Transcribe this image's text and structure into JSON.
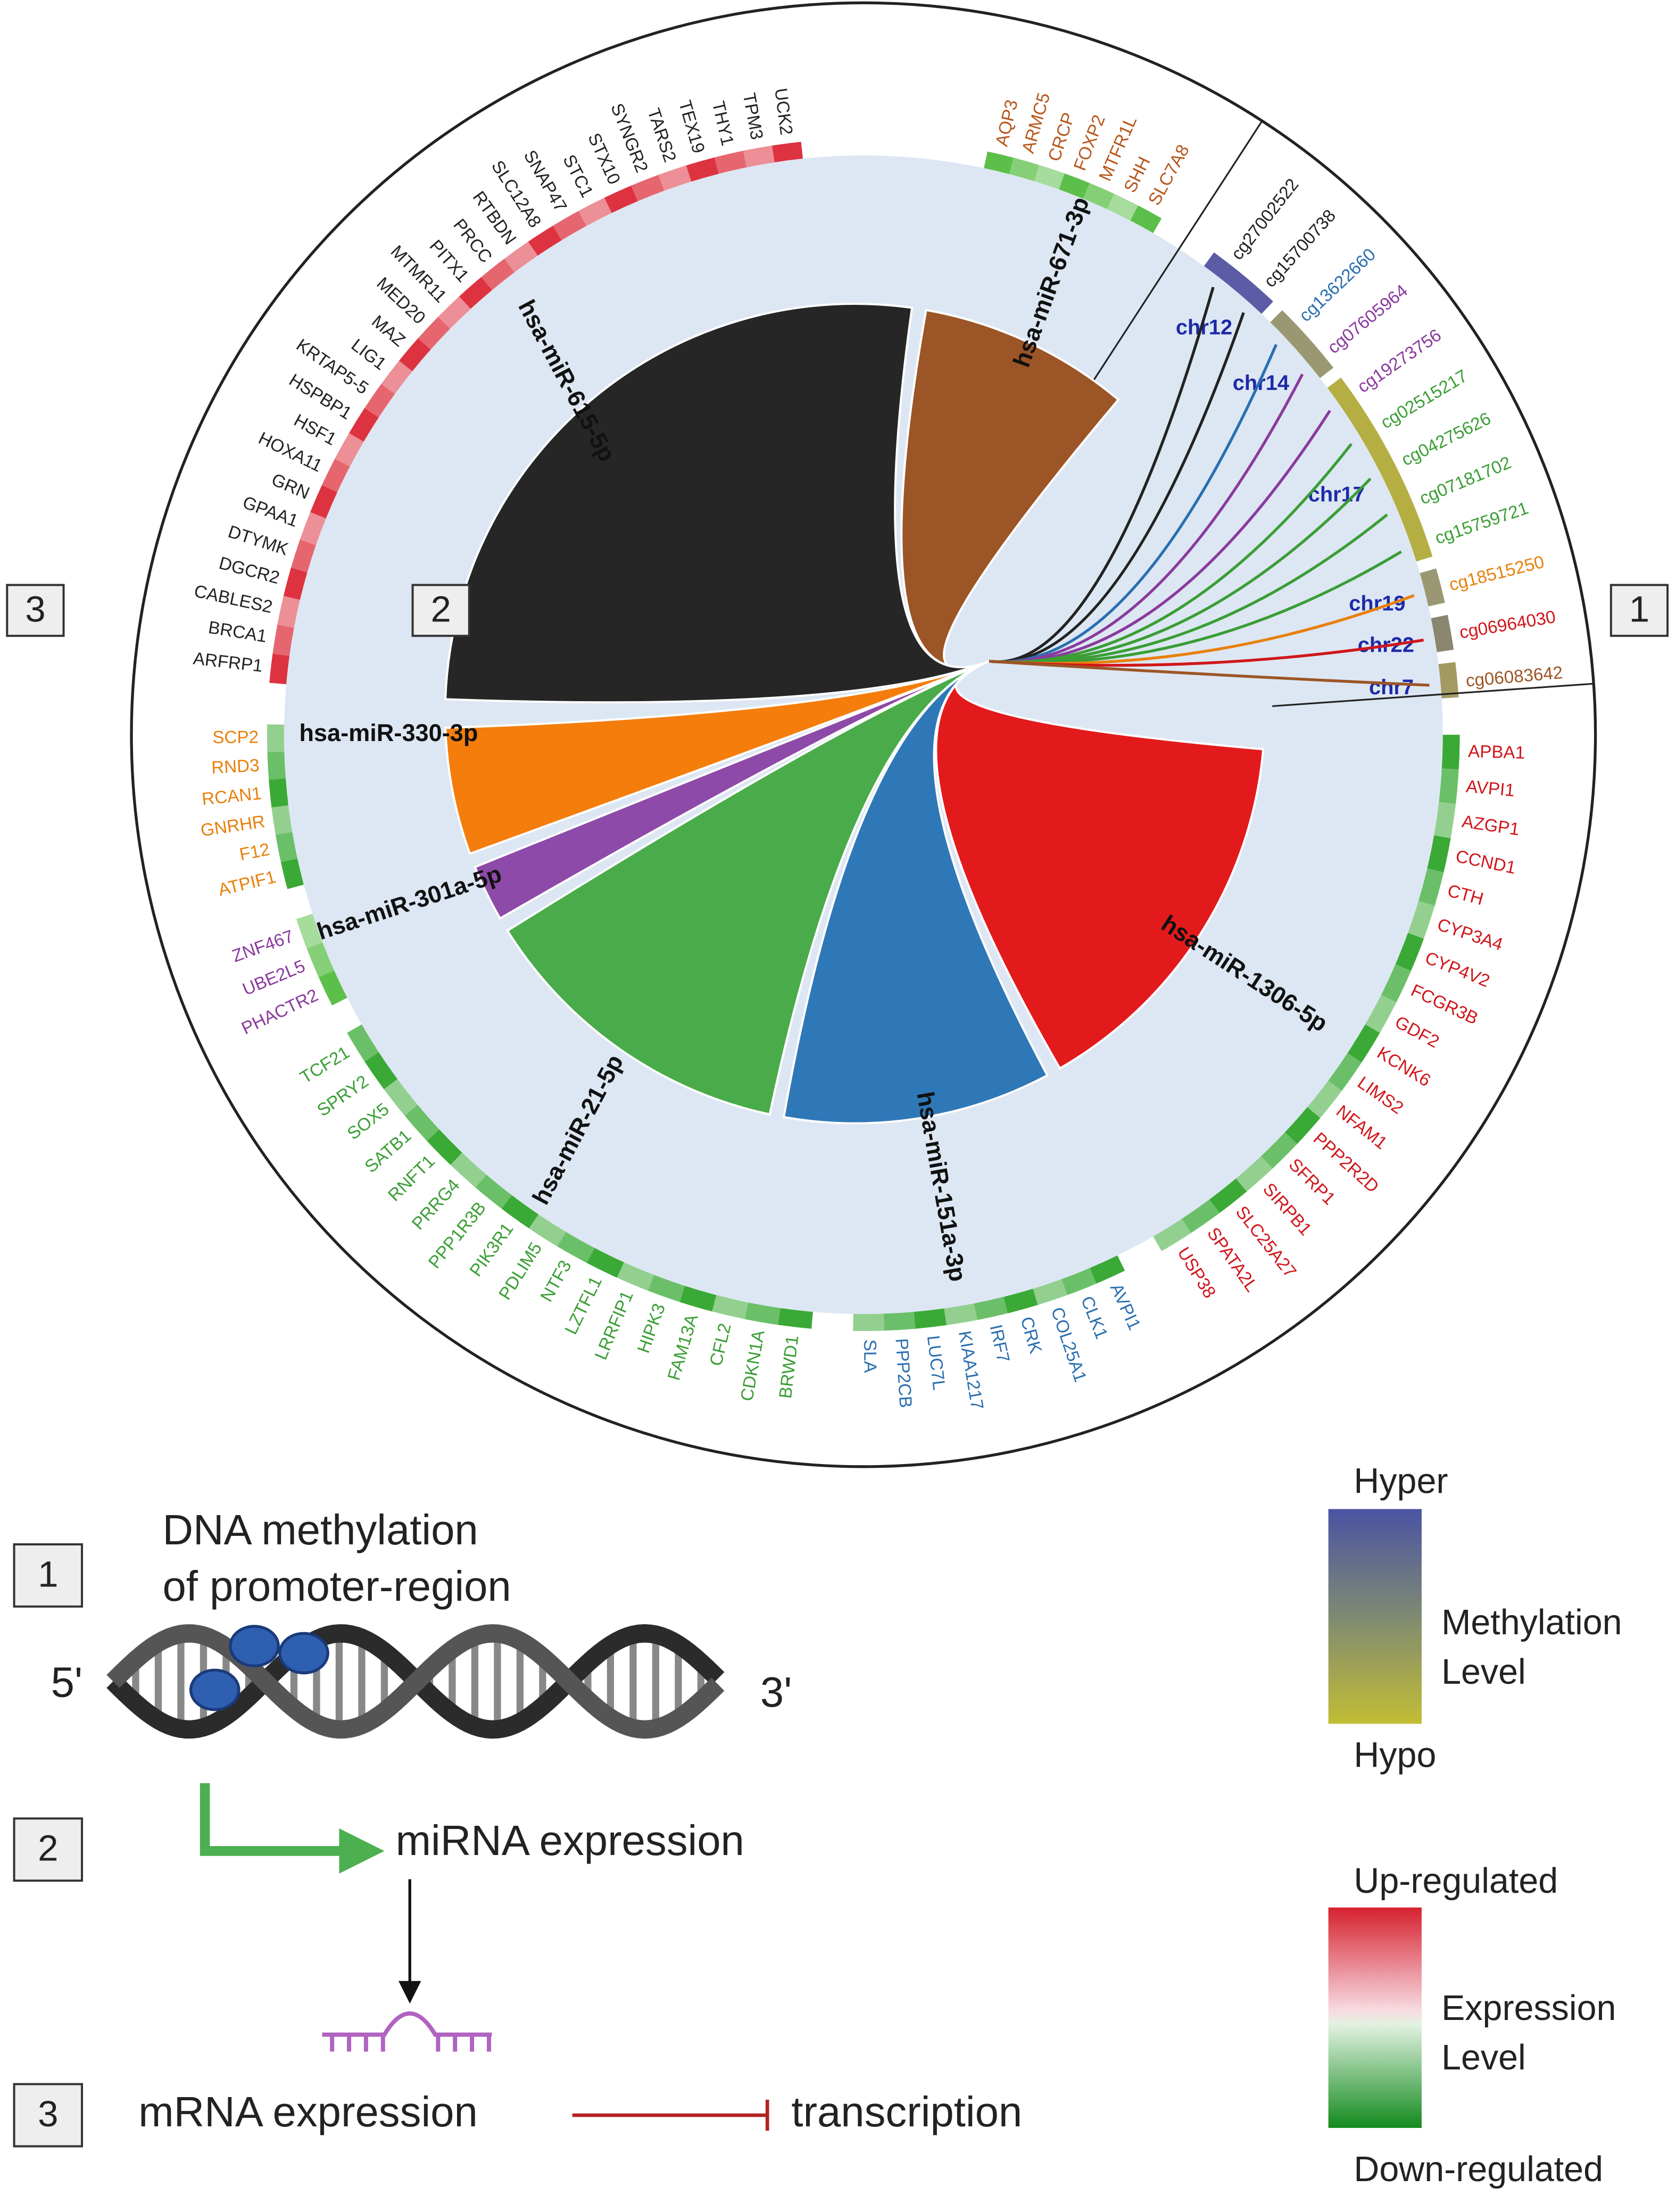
{
  "circos": {
    "sectors": [
      {
        "mirna": "hsa-miR-671-3p",
        "color": "#9c5526",
        "label_color": "#b8561a",
        "ring_color": "#5cbf4a",
        "genes": [
          "AQP3",
          "ARMC5",
          "CRCP",
          "FOXP2",
          "MTFR1L",
          "SHH",
          "SLC7A8"
        ]
      },
      {
        "mirna": "hsa-miR-1306-5p",
        "color": "#e31a1c",
        "label_color": "#d0161b",
        "ring_color": "#3aa935",
        "genes": [
          "APBA1",
          "AVPI1",
          "AZGP1",
          "CCND1",
          "CTH",
          "CYP3A4",
          "CYP4V2",
          "FCGR3B",
          "GDF2",
          "KCNK6",
          "LIMS2",
          "NFAM1",
          "PPP2R2D",
          "SFRP1",
          "SIRPB1",
          "SLC25A27",
          "SPATA2L",
          "USP38"
        ]
      },
      {
        "mirna": "hsa-miR-151a-3p",
        "color": "#2f78b7",
        "label_color": "#2a6fb0",
        "ring_color": "#3aa935",
        "genes": [
          "AVPI1",
          "CLK1",
          "COL25A1",
          "CRK",
          "IRF7",
          "KIAA1217",
          "LUC7L",
          "PPP2CB",
          "SLA"
        ]
      },
      {
        "mirna": "hsa-miR-21-5p",
        "color": "#4aab4a",
        "label_color": "#3a9e35",
        "ring_color": "#3aa935",
        "genes": [
          "BRWD1",
          "CDKN1A",
          "CFL2",
          "FAM13A",
          "HIPK3",
          "LRRFIP1",
          "LZTFL1",
          "NTF3",
          "PDLIM5",
          "PIK3R1",
          "PPP1R3B",
          "PRRG4",
          "RNFT1",
          "SATB1",
          "SOX5",
          "SPRY2",
          "TCF21"
        ]
      },
      {
        "mirna": "hsa-miR-301a-5p",
        "color": "#8e4aa8",
        "label_color": "#8a3a9e",
        "ring_color": "#5cbf4a",
        "genes": [
          "PHACTR2",
          "UBE2L5",
          "ZNF467"
        ]
      },
      {
        "mirna": "hsa-miR-330-3p",
        "color": "#f47d0c",
        "label_color": "#e8800c",
        "ring_color": "#3aa935",
        "genes": [
          "ATPIF1",
          "F12",
          "GNRHR",
          "RCAN1",
          "RND3",
          "SCP2"
        ]
      },
      {
        "mirna": "hsa-miR-615-5p",
        "color": "#262626",
        "label_color": "#222222",
        "ring_color": "#dd3340",
        "genes": [
          "ARFRP1",
          "BRCA1",
          "CABLES2",
          "DGCR2",
          "DTYMK",
          "GPAA1",
          "GRN",
          "HOXA11",
          "HSF1",
          "HSPBP1",
          "KRTAP5-5",
          "LIG1",
          "MAZ",
          "MED20",
          "MTMR11",
          "PITX1",
          "PRCC",
          "RTBDN",
          "SLC12A8",
          "SNAP47",
          "STC1",
          "STX10",
          "SYNGR2",
          "TARS2",
          "TEX19",
          "THY1",
          "TPM3",
          "UCK2"
        ]
      }
    ],
    "methylation": [
      {
        "chromosome": "chr12",
        "color": "#5c5ca6",
        "sites": [
          {
            "id": "cg27002522",
            "color": "#222222"
          },
          {
            "id": "cg15700738",
            "color": "#222222"
          }
        ]
      },
      {
        "chromosome": "chr14",
        "color": "#9a9872",
        "sites": [
          {
            "id": "cg13622660",
            "color": "#2a6fb0"
          },
          {
            "id": "cg07605964",
            "color": "#8a3a9e"
          }
        ]
      },
      {
        "chromosome": "chr17",
        "color": "#b5ae42",
        "sites": [
          {
            "id": "cg19273756",
            "color": "#8a3a9e"
          },
          {
            "id": "cg02515217",
            "color": "#3a9e35"
          },
          {
            "id": "cg04275626",
            "color": "#3a9e35"
          },
          {
            "id": "cg07181702",
            "color": "#3a9e35"
          },
          {
            "id": "cg15759721",
            "color": "#3a9e35"
          }
        ]
      },
      {
        "chromosome": "chr19",
        "color": "#9a9872",
        "sites": [
          {
            "id": "cg18515250",
            "color": "#e8800c"
          }
        ]
      },
      {
        "chromosome": "chr22",
        "color": "#8a8670",
        "sites": [
          {
            "id": "cg06964030",
            "color": "#d0161b"
          }
        ]
      },
      {
        "chromosome": "chr7",
        "color": "#a39a62",
        "sites": [
          {
            "id": "cg06083642",
            "color": "#9c5526"
          }
        ]
      }
    ],
    "region_labels": [
      "3",
      "2",
      "1"
    ]
  },
  "pathway": {
    "steps": [
      {
        "number": "1",
        "lines": [
          "DNA methylation",
          "of promoter-region"
        ]
      },
      {
        "number": "2",
        "lines": [
          "miRNA expression"
        ]
      },
      {
        "number": "3",
        "lines": [
          "mRNA expression"
        ]
      }
    ],
    "dna_ends": [
      "5'",
      "3'"
    ],
    "inhibits": "transcription"
  },
  "legends": [
    {
      "top": "Hyper",
      "title": [
        "Methylation",
        "Level"
      ],
      "bottom": "Hypo"
    },
    {
      "top": "Up-regulated",
      "title": [
        "Expression",
        "Level"
      ],
      "bottom": "Down-regulated"
    }
  ]
}
